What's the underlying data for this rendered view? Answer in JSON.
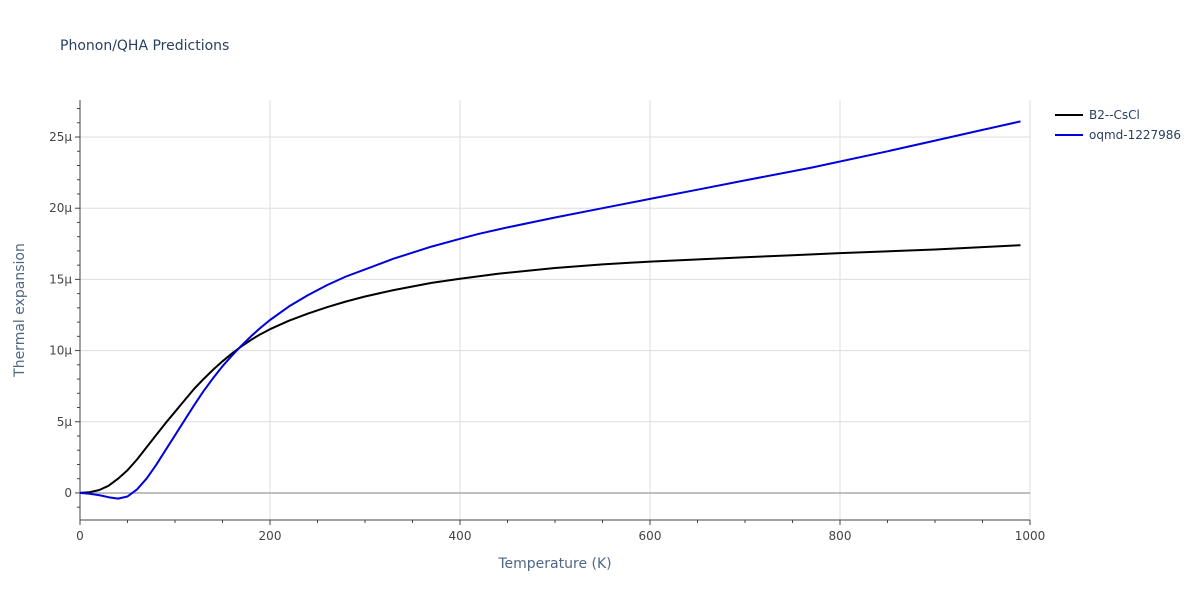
{
  "chart_data": {
    "type": "line",
    "title": "Phonon/QHA Predictions",
    "xlabel": "Temperature (K)",
    "ylabel": "Thermal expansion",
    "xlim": [
      0,
      1000
    ],
    "ylim": [
      -1.9e-06,
      2.76e-05
    ],
    "x_ticks": [
      0,
      200,
      400,
      600,
      800,
      1000
    ],
    "x_tick_labels": [
      "0",
      "200",
      "400",
      "600",
      "800",
      "1000"
    ],
    "y_ticks": [
      0,
      5e-06,
      1e-05,
      1.5e-05,
      2e-05,
      2.5e-05
    ],
    "y_tick_labels": [
      "0",
      "5µ",
      "10µ",
      "15µ",
      "20µ",
      "25µ"
    ],
    "grid": true,
    "legend_position": "top-right",
    "series": [
      {
        "name": "B2--CsCl",
        "color": "#000000",
        "x": [
          0,
          10,
          20,
          30,
          40,
          50,
          60,
          70,
          80,
          90,
          100,
          110,
          120,
          130,
          140,
          150,
          160,
          170,
          180,
          190,
          200,
          220,
          240,
          260,
          280,
          300,
          330,
          370,
          400,
          440,
          500,
          550,
          600,
          700,
          750,
          800,
          900,
          990
        ],
        "y": [
          0,
          5e-08,
          2e-07,
          5e-07,
          1e-06,
          1.6e-06,
          2.35e-06,
          3.2e-06,
          4.05e-06,
          4.9e-06,
          5.7e-06,
          6.5e-06,
          7.3e-06,
          8e-06,
          8.65e-06,
          9.25e-06,
          9.8e-06,
          1.03e-05,
          1.075e-05,
          1.115e-05,
          1.15e-05,
          1.21e-05,
          1.26e-05,
          1.305e-05,
          1.345e-05,
          1.38e-05,
          1.425e-05,
          1.475e-05,
          1.505e-05,
          1.54e-05,
          1.58e-05,
          1.605e-05,
          1.625e-05,
          1.655e-05,
          1.67e-05,
          1.685e-05,
          1.71e-05,
          1.74e-05
        ]
      },
      {
        "name": "oqmd-1227986",
        "color": "#0000dd",
        "x": [
          0,
          10,
          20,
          30,
          40,
          50,
          60,
          70,
          80,
          90,
          100,
          110,
          120,
          130,
          140,
          150,
          160,
          170,
          180,
          190,
          200,
          220,
          240,
          260,
          280,
          300,
          330,
          370,
          400,
          420,
          450,
          500,
          550,
          600,
          650,
          700,
          770,
          850,
          900,
          950,
          990
        ],
        "y": [
          0,
          -5e-08,
          -1.5e-07,
          -3e-07,
          -4e-07,
          -2.5e-07,
          2.5e-07,
          1e-06,
          1.95e-06,
          3e-06,
          4.05e-06,
          5.1e-06,
          6.15e-06,
          7.15e-06,
          8.05e-06,
          8.9e-06,
          9.65e-06,
          1.035e-05,
          1.1e-05,
          1.16e-05,
          1.215e-05,
          1.31e-05,
          1.39e-05,
          1.46e-05,
          1.52e-05,
          1.57e-05,
          1.645e-05,
          1.73e-05,
          1.785e-05,
          1.82e-05,
          1.865e-05,
          1.935e-05,
          2e-05,
          2.065e-05,
          2.13e-05,
          2.195e-05,
          2.285e-05,
          2.4e-05,
          2.475e-05,
          2.55e-05,
          2.61e-05
        ]
      }
    ]
  }
}
